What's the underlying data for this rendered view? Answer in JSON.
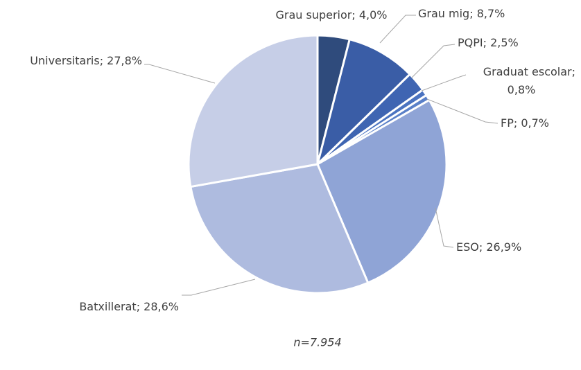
{
  "chart_data": {
    "type": "pie",
    "categories": [
      "Grau superior",
      "Grau mig",
      "PQPI",
      "Graduat escolar",
      "FP",
      "ESO",
      "Batxillerat",
      "Universitaris"
    ],
    "values": [
      4.0,
      8.7,
      2.5,
      0.8,
      0.7,
      26.9,
      28.6,
      27.8
    ],
    "value_labels": [
      "4,0%",
      "8,7%",
      "2,5%",
      "0,8%",
      "0,7%",
      "26,9%",
      "28,6%",
      "27,8%"
    ],
    "label_separator": "; ",
    "colors": [
      "#2f4b7c",
      "#3a5da6",
      "#3f65b2",
      "#4b73c0",
      "#5a80c8",
      "#8fa4d6",
      "#aebbdf",
      "#c6cee7"
    ],
    "note": "n=7.954"
  }
}
